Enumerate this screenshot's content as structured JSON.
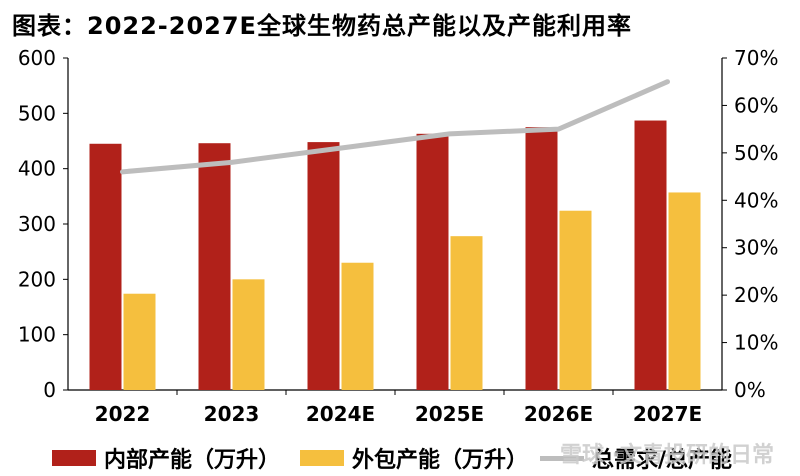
{
  "title": "图表：2022-2027E全球生物药总产能以及产能利用率",
  "watermark": "雪球 ·文青投研的日常",
  "chart_data": {
    "type": "bar+line",
    "categories": [
      "2022",
      "2023",
      "2024E",
      "2025E",
      "2026E",
      "2027E"
    ],
    "series": [
      {
        "name": "内部产能（万升）",
        "type": "bar",
        "axis": "left",
        "color": "#b1211a",
        "values": [
          445,
          446,
          448,
          463,
          475,
          487
        ]
      },
      {
        "name": "外包产能（万升）",
        "type": "bar",
        "axis": "left",
        "color": "#f5bf3e",
        "values": [
          174,
          200,
          230,
          278,
          324,
          357
        ]
      },
      {
        "name": "总需求/总产能",
        "type": "line",
        "axis": "right",
        "color": "#bdbdbd",
        "values": [
          0.46,
          0.48,
          0.51,
          0.54,
          0.55,
          0.65
        ]
      }
    ],
    "y_left": {
      "min": 0,
      "max": 600,
      "ticks": [
        0,
        100,
        200,
        300,
        400,
        500,
        600
      ]
    },
    "y_right": {
      "min": 0,
      "max": 0.7,
      "ticks": [
        "0%",
        "10%",
        "20%",
        "30%",
        "40%",
        "50%",
        "60%",
        "70%"
      ]
    },
    "grid": false,
    "legend_position": "bottom"
  }
}
